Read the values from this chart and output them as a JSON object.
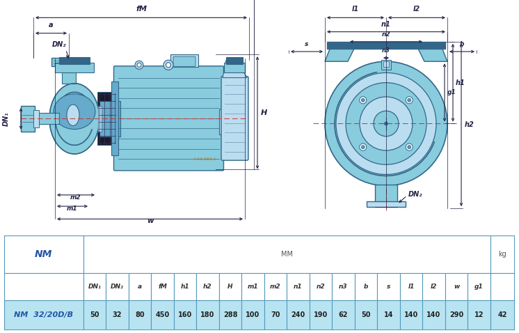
{
  "table_headers_mm": [
    "DN₁",
    "DN₂",
    "a",
    "fM",
    "h1",
    "h2",
    "H",
    "m1",
    "m2",
    "n1",
    "n2",
    "n3",
    "b",
    "s",
    "l1",
    "l2",
    "w",
    "g1"
  ],
  "model_name": "NM  32/20D/B",
  "values": [
    "50",
    "32",
    "80",
    "450",
    "160",
    "180",
    "288",
    "100",
    "70",
    "240",
    "190",
    "62",
    "50",
    "14",
    "140",
    "140",
    "290",
    "12",
    "42"
  ],
  "bg_color_data": "#b8e4f2",
  "border_color": "#5599bb",
  "text_color_blue": "#2255aa",
  "pump_color": "#88ccdd",
  "pump_dark": "#5599bb",
  "pump_mid": "#66aacc",
  "pump_light": "#bbddf0",
  "pump_verydark": "#336688",
  "dim_color": "#222244",
  "orange_color": "#cc7700"
}
